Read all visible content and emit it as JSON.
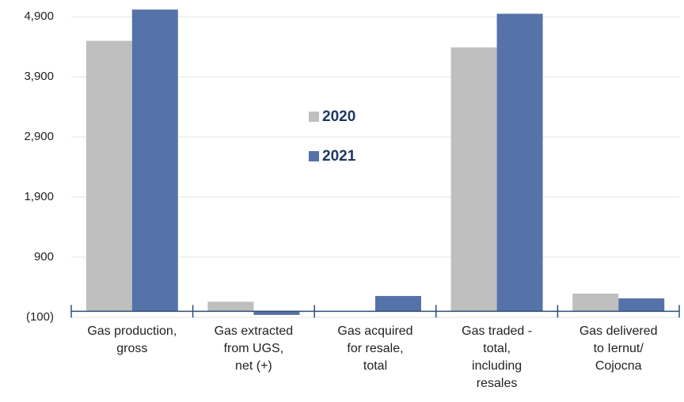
{
  "chart_data": {
    "type": "bar",
    "categories": [
      "Gas production,\ngross",
      "Gas extracted\nfrom UGS,\nnet (+)",
      "Gas acquired\nfor resale,\ntotal",
      "Gas traded -\ntotal,\nincluding\nresales",
      "Gas delivered\nto Iernut/\nCojocna"
    ],
    "series": [
      {
        "name": "2020",
        "color": "#bfbfbf",
        "values": [
          4500,
          160,
          0,
          4390,
          295
        ]
      },
      {
        "name": "2021",
        "color": "#5573a8",
        "values": [
          5020,
          -60,
          255,
          4950,
          215
        ]
      }
    ],
    "ylim": [
      -100,
      5100
    ],
    "yticks": [
      {
        "value": -100,
        "label": "(100)"
      },
      900,
      {
        "value": 1900,
        "label": "1,900"
      },
      {
        "value": 2900,
        "label": "2,900"
      },
      {
        "value": 3900,
        "label": "3,900"
      },
      {
        "value": 4900,
        "label": "4,900"
      }
    ],
    "grid": true
  }
}
